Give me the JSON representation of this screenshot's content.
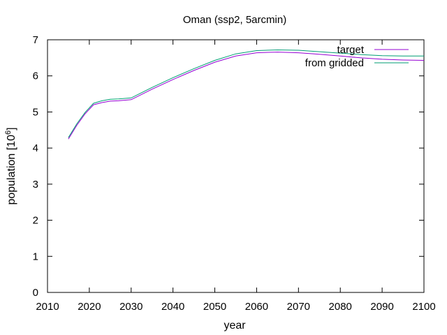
{
  "chart_data": {
    "type": "line",
    "title": "Oman (ssp2, 5arcmin)",
    "xlabel": "year",
    "ylabel": "population [10",
    "ylabel_superscript": "6",
    "ylabel_close": "]",
    "xlim": [
      2010,
      2100
    ],
    "ylim": [
      0,
      7
    ],
    "xticks": [
      2010,
      2020,
      2030,
      2040,
      2050,
      2060,
      2070,
      2080,
      2090,
      2100
    ],
    "yticks": [
      0,
      1,
      2,
      3,
      4,
      5,
      6,
      7
    ],
    "grid": false,
    "legend_position": "top-right",
    "series": [
      {
        "name": "target",
        "color": "#9400d3",
        "x": [
          2015,
          2017,
          2019,
          2021,
          2023,
          2025,
          2027,
          2030,
          2035,
          2040,
          2045,
          2050,
          2055,
          2060,
          2065,
          2070,
          2075,
          2080,
          2085,
          2090,
          2095,
          2100
        ],
        "y": [
          4.25,
          4.63,
          4.95,
          5.2,
          5.26,
          5.3,
          5.31,
          5.34,
          5.63,
          5.9,
          6.15,
          6.38,
          6.55,
          6.64,
          6.66,
          6.64,
          6.6,
          6.55,
          6.5,
          6.46,
          6.44,
          6.43
        ]
      },
      {
        "name": "from gridded",
        "color": "#009e73",
        "x": [
          2015,
          2017,
          2019,
          2021,
          2023,
          2025,
          2027,
          2030,
          2035,
          2040,
          2045,
          2050,
          2055,
          2060,
          2065,
          2070,
          2075,
          2080,
          2085,
          2090,
          2095,
          2100
        ],
        "y": [
          4.29,
          4.67,
          4.99,
          5.24,
          5.31,
          5.35,
          5.36,
          5.39,
          5.68,
          5.95,
          6.2,
          6.43,
          6.61,
          6.7,
          6.72,
          6.71,
          6.67,
          6.63,
          6.59,
          6.56,
          6.55,
          6.55
        ]
      }
    ]
  }
}
